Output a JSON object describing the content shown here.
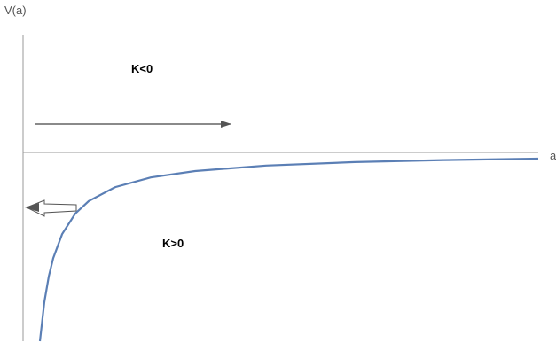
{
  "axes": {
    "y_label": "V(a)",
    "x_label": "a"
  },
  "regions": {
    "upper": "K<0",
    "lower": "K>0"
  }
}
